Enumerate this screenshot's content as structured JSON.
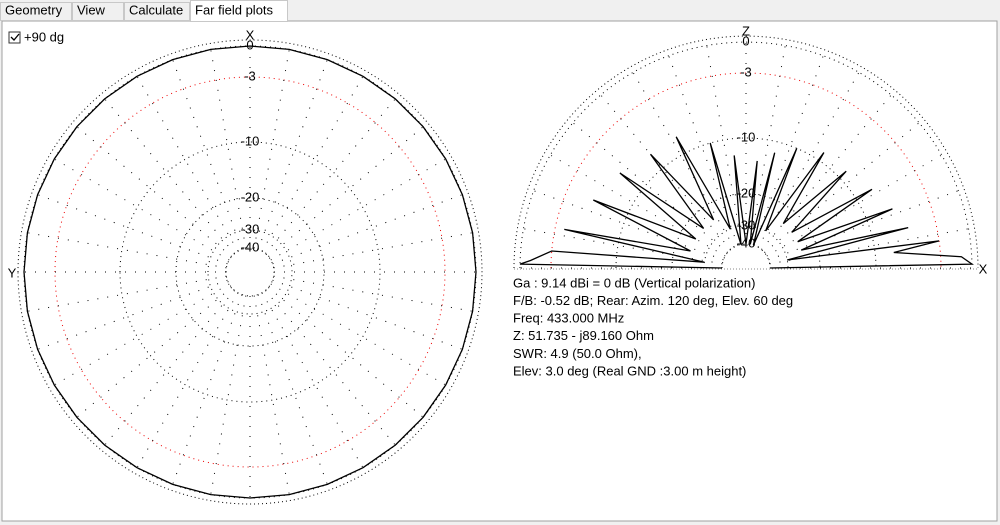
{
  "tabs": [
    "Geometry",
    "View",
    "Calculate",
    "Far field plots"
  ],
  "checkbox": {
    "label": "+90 dg",
    "checked": true
  },
  "ring_ticks": [
    0,
    -3,
    -10,
    -20,
    -30,
    -40
  ],
  "azimuth_plot": {
    "top_label": "X",
    "side_label": "Y",
    "angles": [
      0,
      10,
      20,
      30,
      40,
      50,
      60,
      70,
      80,
      90,
      100,
      110,
      120,
      130,
      140,
      150,
      160,
      170,
      180,
      190,
      200,
      210,
      220,
      230,
      240,
      250,
      260,
      270,
      280,
      290,
      300,
      310,
      320,
      330,
      340,
      350
    ],
    "values": [
      0,
      0,
      0,
      0,
      0,
      0,
      0,
      0,
      0,
      0,
      0,
      0,
      0,
      0,
      0,
      0,
      0,
      0,
      0,
      0,
      0,
      0,
      0,
      0,
      0,
      0,
      0,
      0,
      0,
      0,
      0,
      0,
      0,
      0,
      0,
      0
    ]
  },
  "elevation_plot": {
    "top_label": "Z",
    "side_label": "X",
    "angles": [
      0,
      1,
      3,
      6,
      8,
      11,
      14,
      18,
      22,
      27,
      32,
      38,
      44,
      50,
      56,
      62,
      67,
      72,
      76,
      80,
      84,
      90,
      96,
      102,
      106,
      112,
      118,
      124,
      130,
      137,
      143,
      150,
      156,
      163,
      168,
      172,
      175,
      178,
      179,
      180
    ],
    "values": [
      -40,
      0,
      -1,
      -8,
      -3,
      -30,
      -6,
      -25,
      -7,
      -25,
      -8,
      -25,
      -9,
      -25,
      -9,
      -30,
      -10,
      -40,
      -12,
      -40,
      -14,
      -40,
      -13,
      -40,
      -10,
      -30,
      -8,
      -25,
      -8,
      -25,
      -7,
      -25,
      -6,
      -25,
      -4,
      -30,
      -3,
      -1,
      0,
      -40
    ]
  },
  "info": [
    "Ga : 9.14 dBi = 0 dB  (Vertical polarization)",
    "F/B: -0.52 dB; Rear: Azim. 120 deg,  Elev. 60 deg",
    "Freq: 433.000 MHz",
    "Z: 51.735 - j89.160 Ohm",
    "SWR: 4.9 (50.0 Ohm),",
    "Elev: 3.0 deg (Real GND  :3.00 m height)"
  ]
}
